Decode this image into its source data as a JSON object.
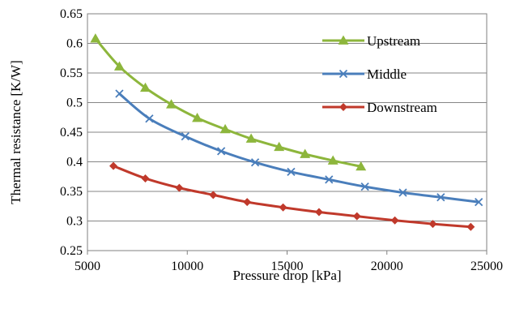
{
  "chart_data": {
    "type": "line",
    "title": "",
    "xlabel": "Pressure drop [kPa]",
    "ylabel": "Thermal resistance [K/W]",
    "xlim": [
      5000,
      25000
    ],
    "ylim": [
      0.25,
      0.65
    ],
    "xticks": [
      5000,
      10000,
      15000,
      20000,
      25000
    ],
    "yticks": [
      0.25,
      0.3,
      0.35,
      0.4,
      0.45,
      0.5,
      0.55,
      0.6,
      0.65
    ],
    "grid": "horizontal",
    "legend_position": "top-right",
    "series": [
      {
        "name": "Upstream",
        "color": "#8db63c",
        "marker": "triangle",
        "x": [
          5400,
          6600,
          7900,
          9200,
          10500,
          11900,
          13200,
          14600,
          15900,
          17300,
          18700
        ],
        "y": [
          0.608,
          0.561,
          0.525,
          0.497,
          0.474,
          0.455,
          0.439,
          0.425,
          0.413,
          0.402,
          0.392
        ]
      },
      {
        "name": "Middle",
        "color": "#4a7ebb",
        "marker": "x",
        "x": [
          6600,
          8100,
          9900,
          11700,
          13400,
          15200,
          17100,
          18900,
          20800,
          22700,
          24600
        ],
        "y": [
          0.515,
          0.473,
          0.443,
          0.418,
          0.399,
          0.383,
          0.37,
          0.358,
          0.348,
          0.34,
          0.332
        ]
      },
      {
        "name": "Downstream",
        "color": "#c0392b",
        "marker": "diamond",
        "x": [
          6300,
          7900,
          9600,
          11300,
          13000,
          14800,
          16600,
          18500,
          20400,
          22300,
          24200
        ],
        "y": [
          0.393,
          0.372,
          0.356,
          0.344,
          0.332,
          0.323,
          0.315,
          0.308,
          0.301,
          0.295,
          0.29
        ]
      }
    ]
  }
}
